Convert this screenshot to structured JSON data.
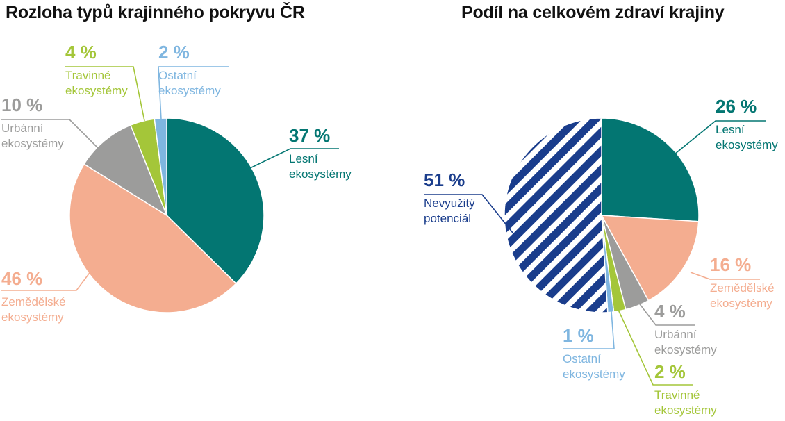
{
  "colors": {
    "forest": "#037672",
    "agri": "#f4ad90",
    "urban": "#9c9c9b",
    "grass": "#a4c639",
    "other": "#7fb6e0",
    "unused": "#1a3d8c"
  },
  "chart_data": [
    {
      "type": "pie",
      "title": "Rozloha typů krajinného pokryvu ČR",
      "slices": [
        {
          "key": "forest",
          "value": 37,
          "pct": "37 %",
          "label_lines": [
            "Lesní",
            "ekosystémy"
          ]
        },
        {
          "key": "agri",
          "value": 46,
          "pct": "46 %",
          "label_lines": [
            "Zemědělské",
            "ekosystémy"
          ]
        },
        {
          "key": "urban",
          "value": 10,
          "pct": "10 %",
          "label_lines": [
            "Urbánní",
            "ekosystémy"
          ]
        },
        {
          "key": "grass",
          "value": 4,
          "pct": "4 %",
          "label_lines": [
            "Travinné",
            "ekosystémy"
          ]
        },
        {
          "key": "other",
          "value": 2,
          "pct": "2 %",
          "label_lines": [
            "Ostatní",
            "ekosystémy"
          ]
        }
      ]
    },
    {
      "type": "pie",
      "title": "Podíl na celkovém zdraví krajiny",
      "slices": [
        {
          "key": "forest",
          "value": 26,
          "pct": "26 %",
          "label_lines": [
            "Lesní",
            "ekosystémy"
          ]
        },
        {
          "key": "agri",
          "value": 16,
          "pct": "16 %",
          "label_lines": [
            "Zemědělské",
            "ekosystémy"
          ]
        },
        {
          "key": "urban",
          "value": 4,
          "pct": "4 %",
          "label_lines": [
            "Urbánní",
            "ekosystémy"
          ]
        },
        {
          "key": "grass",
          "value": 2,
          "pct": "2 %",
          "label_lines": [
            "Travinné",
            "ekosystémy"
          ]
        },
        {
          "key": "other",
          "value": 1,
          "pct": "1 %",
          "label_lines": [
            "Ostatní",
            "ekosystémy"
          ]
        },
        {
          "key": "unused",
          "value": 51,
          "pct": "51 %",
          "label_lines": [
            "Nevyužitý",
            "potenciál"
          ],
          "hatched": true
        }
      ]
    }
  ]
}
